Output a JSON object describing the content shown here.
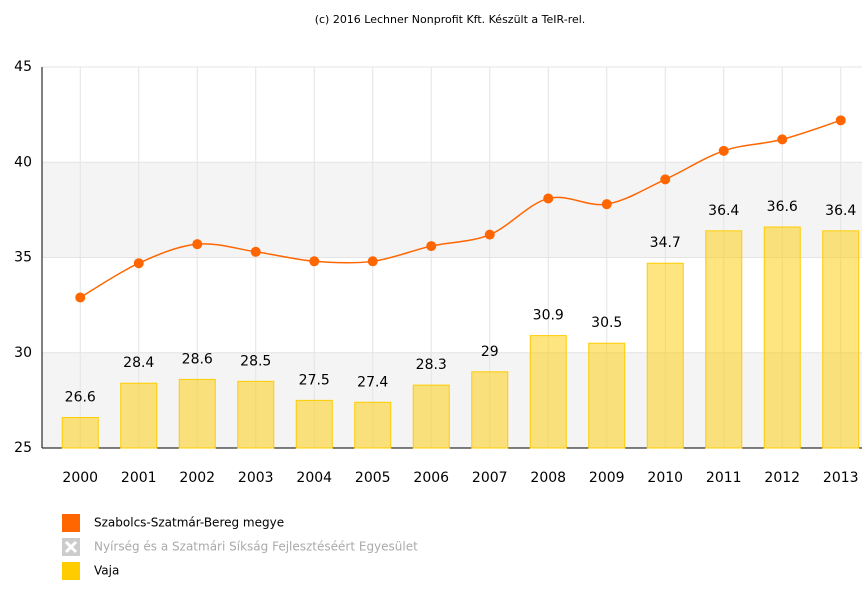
{
  "chart_data": {
    "type": "bar-line",
    "subtitle": "(c) 2016 Lechner Nonprofit Kft. Készült a TeIR-rel.",
    "categories": [
      "2000",
      "2001",
      "2002",
      "2003",
      "2004",
      "2005",
      "2006",
      "2007",
      "2008",
      "2009",
      "2010",
      "2011",
      "2012",
      "2013"
    ],
    "series": [
      {
        "name": "Szabolcs-Szatmár-Bereg megye",
        "color": "#ff6600",
        "type": "line",
        "values": [
          32.9,
          34.7,
          35.7,
          35.3,
          34.8,
          34.8,
          35.6,
          36.2,
          38.1,
          37.8,
          39.1,
          40.6,
          41.2,
          42.2
        ]
      },
      {
        "name": "Nyírség és a Szatmári Síkság Fejlesztéséért Egyesület",
        "color": "#cccccc",
        "visible": false
      },
      {
        "name": "Vaja",
        "color": "#ffcc00",
        "type": "bar",
        "values": [
          26.6,
          28.4,
          28.6,
          28.5,
          27.5,
          27.4,
          28.3,
          29,
          30.9,
          30.5,
          34.7,
          36.4,
          36.6,
          36.4
        ]
      }
    ],
    "ylim": [
      25,
      45
    ],
    "yticks": [
      25,
      30,
      35,
      40,
      45
    ],
    "grid": true
  }
}
